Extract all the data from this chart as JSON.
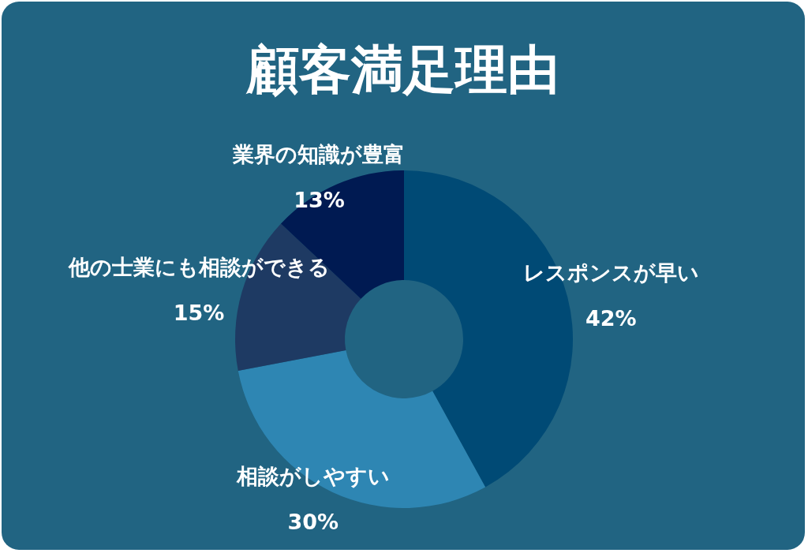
{
  "chart_data": {
    "type": "donut",
    "title": "顧客満足理由",
    "categories": [
      "レスポンスが早い",
      "相談がしやすい",
      "他の士業にも相談ができる",
      "業界の知識が豊富"
    ],
    "values": [
      42,
      30,
      15,
      13
    ],
    "value_labels": [
      "42%",
      "30%",
      "15%",
      "13%"
    ],
    "colors": [
      "#004a75",
      "#2e86b3",
      "#1e3a63",
      "#001a52"
    ],
    "legend": false
  }
}
